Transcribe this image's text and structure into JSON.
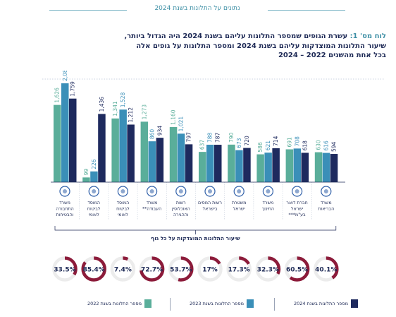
{
  "header": {
    "text": "נתונים על התלונות בשנת 2024"
  },
  "title": {
    "label": "לוח מס' 1:",
    "line1": "עשרת הגופים שמספר התלונות עליהם בשנת 2024 היה הגדול ביותר,",
    "line2": "שיעור התלונות המוצדקות עליהם בשנת 2024 ומספר התלונות על גופים אלה",
    "line3": "בכל אחת מהשנים 2022 – 2024"
  },
  "colors": {
    "y2022": "#5aae9a",
    "y2023": "#3a8fb8",
    "y2024": "#1e2a5e",
    "ring": "#8c1b3a",
    "ring_bg": "#ececec"
  },
  "chart_data": {
    "type": "bar",
    "categories": [
      "משרד התחבורה והבטיחות בדרכים",
      "המוסד לביטוח לאומי",
      "המוסד לביטוח לאומי",
      "משרד העבודה**",
      "רשות האוכלוסין וההגירה",
      "רשות המסים בישראל",
      "משטרת ישראל",
      "משרד החינוך",
      "חברת דואר ישראל בע\"מ***",
      "משרד הבריאות"
    ],
    "series": [
      {
        "name": "מספר התלונות בשנת 2022",
        "values": [
          1626,
          99,
          1341,
          1273,
          1160,
          637,
          790,
          586,
          691,
          630
        ]
      },
      {
        "name": "מספר התלונות בשנת 2023",
        "values": [
          2081,
          226,
          1528,
          860,
          1021,
          788,
          673,
          621,
          708,
          616
        ]
      },
      {
        "name": "מספר התלונות בשנת 2024",
        "values": [
          1759,
          1436,
          1212,
          934,
          797,
          787,
          720,
          714,
          618,
          594
        ]
      }
    ],
    "justified_rate_label": "שיעור התלונות המוצדקות על כל גוף",
    "justified_rate_pct": [
      33.5,
      85.4,
      7.4,
      72.7,
      53.7,
      17,
      17.3,
      32.3,
      60.5,
      40.1
    ],
    "justified_rate_text": [
      "33.5%",
      "85.4%",
      "7.4%",
      "72.7%",
      "53.7%",
      "17%",
      "17.3%",
      "32.3%",
      "60.5%",
      "40.1%"
    ],
    "value_labels": [
      [
        "1,626",
        "2,081",
        "1,759"
      ],
      [
        "99",
        "226",
        "1,436"
      ],
      [
        "1,341",
        "1,528",
        "1,212"
      ],
      [
        "1,273",
        "860",
        "934"
      ],
      [
        "1,160",
        "1,021",
        "797"
      ],
      [
        "637",
        "788",
        "787"
      ],
      [
        "790",
        "673",
        "720"
      ],
      [
        "586",
        "621",
        "714"
      ],
      [
        "691",
        "708",
        "618"
      ],
      [
        "630",
        "616",
        "594"
      ]
    ],
    "grid": false
  },
  "legend": {
    "y2024": "מספר התלונות בשנת 2024",
    "y2023": "מספר התלונות בשנת 2023",
    "y2022": "מספר התלונות בשנת 2022"
  }
}
